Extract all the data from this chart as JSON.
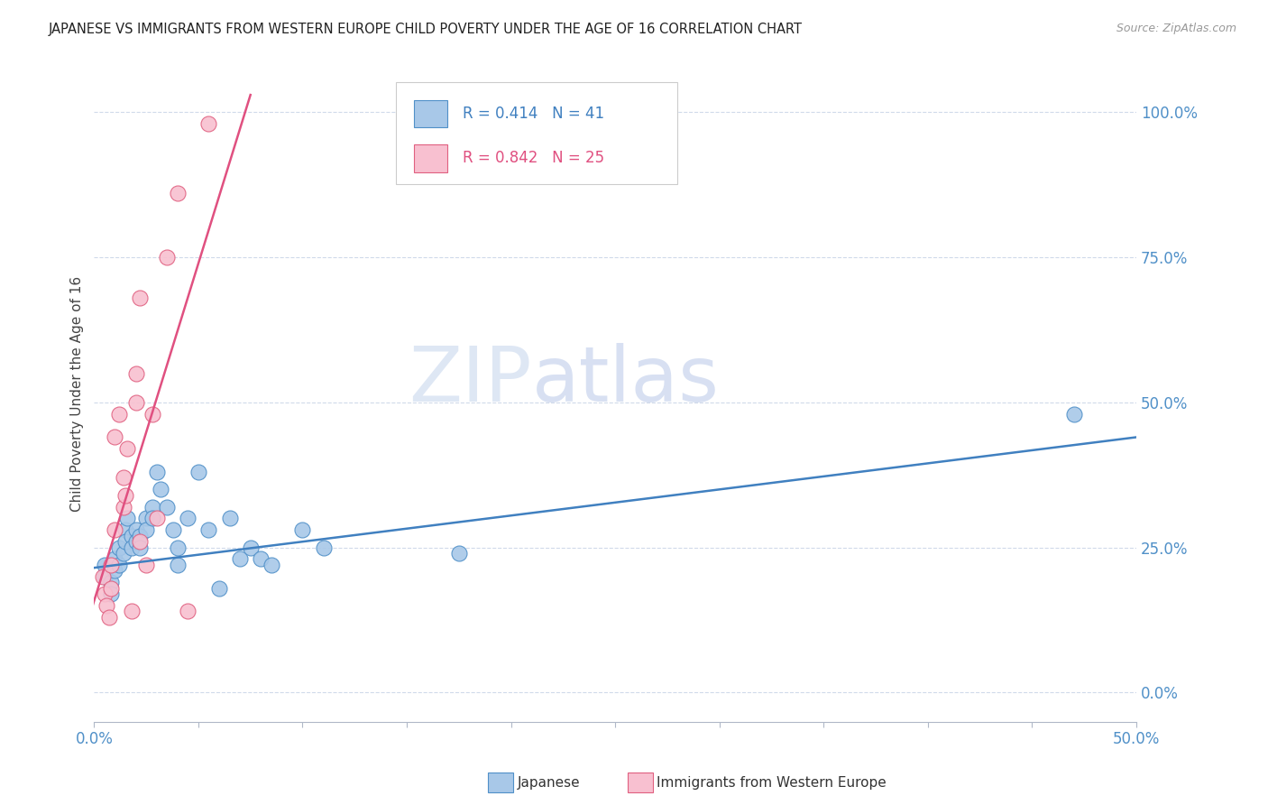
{
  "title": "JAPANESE VS IMMIGRANTS FROM WESTERN EUROPE CHILD POVERTY UNDER THE AGE OF 16 CORRELATION CHART",
  "source": "Source: ZipAtlas.com",
  "xlabel_show": [
    "0.0%",
    "50.0%"
  ],
  "xlabel_show_vals": [
    0.0,
    0.5
  ],
  "xlabel_tick_vals": [
    0.0,
    0.05,
    0.1,
    0.15,
    0.2,
    0.25,
    0.3,
    0.35,
    0.4,
    0.45,
    0.5
  ],
  "ylabel_ticks": [
    "0.0%",
    "25.0%",
    "50.0%",
    "75.0%",
    "100.0%"
  ],
  "ylabel_tick_vals": [
    0.0,
    0.25,
    0.5,
    0.75,
    1.0
  ],
  "xlim": [
    0.0,
    0.5
  ],
  "ylim": [
    -0.05,
    1.08
  ],
  "ylabel": "Child Poverty Under the Age of 16",
  "legend_blue_label": "Japanese",
  "legend_pink_label": "Immigrants from Western Europe",
  "R_blue": 0.414,
  "N_blue": 41,
  "R_pink": 0.842,
  "N_pink": 25,
  "blue_color": "#a8c8e8",
  "pink_color": "#f8c0d0",
  "blue_edge_color": "#5090c8",
  "pink_edge_color": "#e06080",
  "blue_line_color": "#4080c0",
  "pink_line_color": "#e05080",
  "watermark_zip": "ZIP",
  "watermark_atlas": "atlas",
  "blue_scatter": [
    [
      0.005,
      0.22
    ],
    [
      0.005,
      0.2
    ],
    [
      0.008,
      0.19
    ],
    [
      0.008,
      0.17
    ],
    [
      0.01,
      0.23
    ],
    [
      0.01,
      0.21
    ],
    [
      0.012,
      0.25
    ],
    [
      0.012,
      0.22
    ],
    [
      0.014,
      0.24
    ],
    [
      0.015,
      0.28
    ],
    [
      0.015,
      0.26
    ],
    [
      0.016,
      0.3
    ],
    [
      0.018,
      0.27
    ],
    [
      0.018,
      0.25
    ],
    [
      0.02,
      0.28
    ],
    [
      0.02,
      0.26
    ],
    [
      0.022,
      0.27
    ],
    [
      0.022,
      0.25
    ],
    [
      0.025,
      0.3
    ],
    [
      0.025,
      0.28
    ],
    [
      0.028,
      0.32
    ],
    [
      0.028,
      0.3
    ],
    [
      0.03,
      0.38
    ],
    [
      0.032,
      0.35
    ],
    [
      0.035,
      0.32
    ],
    [
      0.038,
      0.28
    ],
    [
      0.04,
      0.25
    ],
    [
      0.04,
      0.22
    ],
    [
      0.045,
      0.3
    ],
    [
      0.05,
      0.38
    ],
    [
      0.055,
      0.28
    ],
    [
      0.06,
      0.18
    ],
    [
      0.065,
      0.3
    ],
    [
      0.07,
      0.23
    ],
    [
      0.075,
      0.25
    ],
    [
      0.08,
      0.23
    ],
    [
      0.085,
      0.22
    ],
    [
      0.1,
      0.28
    ],
    [
      0.11,
      0.25
    ],
    [
      0.175,
      0.24
    ],
    [
      0.47,
      0.48
    ]
  ],
  "pink_scatter": [
    [
      0.004,
      0.2
    ],
    [
      0.005,
      0.17
    ],
    [
      0.006,
      0.15
    ],
    [
      0.007,
      0.13
    ],
    [
      0.008,
      0.18
    ],
    [
      0.008,
      0.22
    ],
    [
      0.01,
      0.28
    ],
    [
      0.01,
      0.44
    ],
    [
      0.012,
      0.48
    ],
    [
      0.014,
      0.32
    ],
    [
      0.014,
      0.37
    ],
    [
      0.015,
      0.34
    ],
    [
      0.016,
      0.42
    ],
    [
      0.018,
      0.14
    ],
    [
      0.02,
      0.55
    ],
    [
      0.02,
      0.5
    ],
    [
      0.022,
      0.68
    ],
    [
      0.022,
      0.26
    ],
    [
      0.025,
      0.22
    ],
    [
      0.028,
      0.48
    ],
    [
      0.03,
      0.3
    ],
    [
      0.035,
      0.75
    ],
    [
      0.04,
      0.86
    ],
    [
      0.045,
      0.14
    ],
    [
      0.055,
      0.98
    ]
  ],
  "blue_line_pts": [
    [
      0.0,
      0.215
    ],
    [
      0.5,
      0.44
    ]
  ],
  "pink_line_pts": [
    [
      -0.005,
      0.1
    ],
    [
      0.075,
      1.03
    ]
  ]
}
